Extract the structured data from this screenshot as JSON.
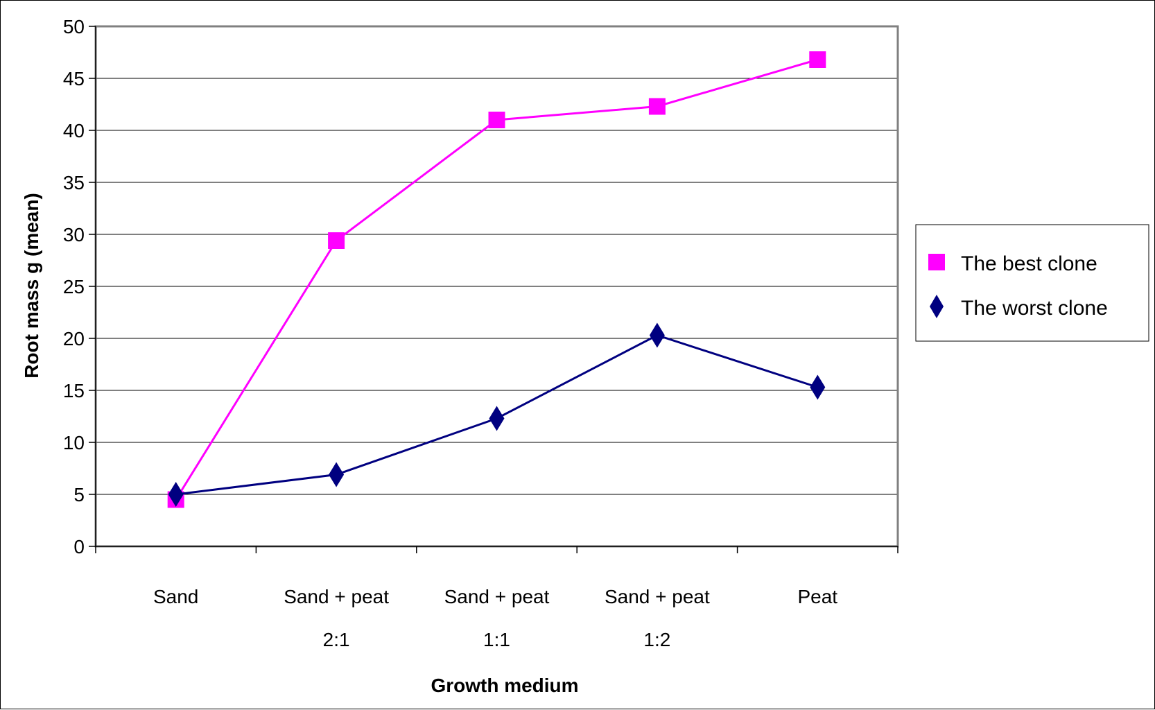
{
  "chart_data": {
    "type": "line",
    "title": "",
    "xlabel": "Growth medium",
    "ylabel": "Root mass g (mean)",
    "ylim": [
      0,
      50
    ],
    "yticks": [
      "0",
      "5",
      "10",
      "15",
      "20",
      "25",
      "30",
      "35",
      "40",
      "45",
      "50"
    ],
    "categories": [
      [
        "Sand"
      ],
      [
        "Sand + peat",
        "2:1"
      ],
      [
        "Sand + peat",
        "1:1"
      ],
      [
        "Sand + peat",
        "1:2"
      ],
      [
        "Peat"
      ]
    ],
    "grid": true,
    "legend_position": "right",
    "series": [
      {
        "name": "The best clone",
        "color": "#ff00ff",
        "marker": "square",
        "values": [
          4.5,
          29.4,
          41.0,
          42.3,
          46.8
        ]
      },
      {
        "name": "The worst clone",
        "color": "#000080",
        "marker": "diamond",
        "values": [
          5.0,
          6.9,
          12.3,
          20.3,
          15.3
        ]
      }
    ]
  }
}
